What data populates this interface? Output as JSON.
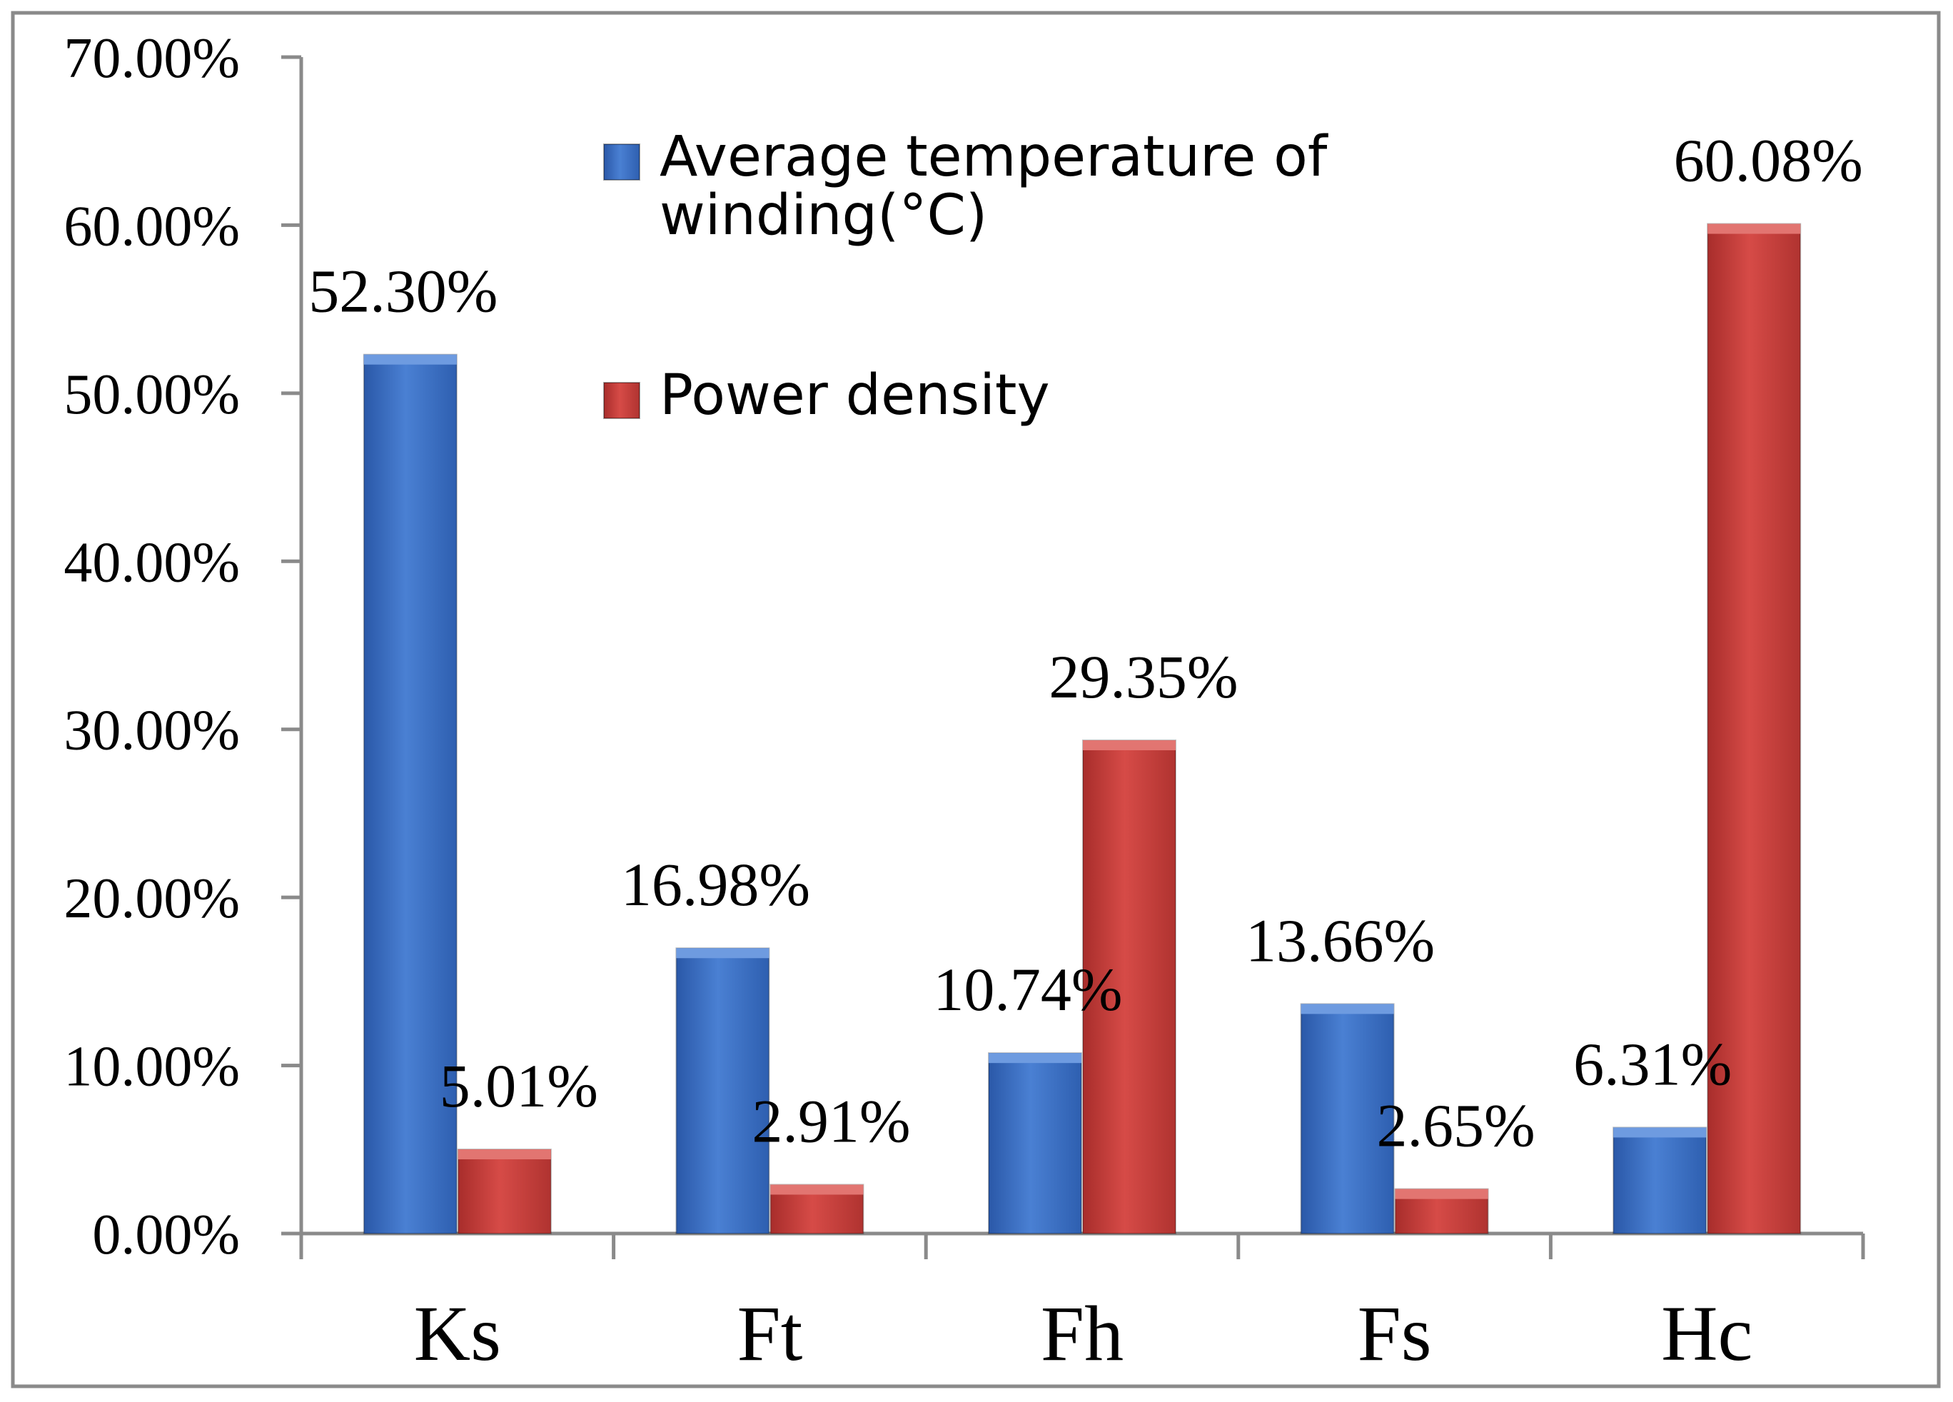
{
  "chart_data": {
    "type": "bar",
    "title": "",
    "xlabel": "",
    "ylabel": "",
    "categories": [
      "Ks",
      "Ft",
      "Fh",
      "Fs",
      "Hc"
    ],
    "ylim": [
      0,
      0.7
    ],
    "yticks": [
      0,
      0.1,
      0.2,
      0.3,
      0.4,
      0.5,
      0.6,
      0.7
    ],
    "ytick_labels": [
      "0.00%",
      "10.00%",
      "20.00%",
      "30.00%",
      "40.00%",
      "50.00%",
      "60.00%",
      "70.00%"
    ],
    "grid": false,
    "legend_position": "upper-center",
    "series": [
      {
        "name": "Average temperature of winding(°C)",
        "legend_lines": [
          "Average temperature of",
          "winding(°C)"
        ],
        "color": "#3E72C4",
        "values": [
          0.523,
          0.1698,
          0.1074,
          0.1366,
          0.0631
        ],
        "labels": [
          "52.30%",
          "16.98%",
          "10.74%",
          "13.66%",
          "6.31%"
        ]
      },
      {
        "name": "Power density",
        "legend_lines": [
          "Power density"
        ],
        "color": "#C9403D",
        "values": [
          0.0501,
          0.0291,
          0.2935,
          0.0265,
          0.6008
        ],
        "labels": [
          "5.01%",
          "2.91%",
          "29.35%",
          "2.65%",
          "60.08%"
        ]
      }
    ]
  }
}
